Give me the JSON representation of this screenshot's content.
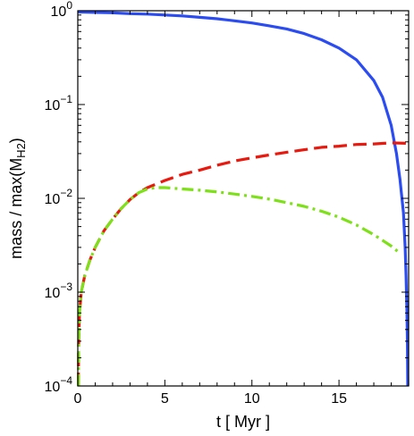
{
  "chart_data": {
    "type": "line",
    "title": "",
    "xlabel": "t [ Myr ]",
    "ylabel_parts": {
      "main": "mass / max(M",
      "sub": "H2",
      "close": ")"
    },
    "xlim": [
      0,
      19
    ],
    "ylim": [
      0.0001,
      1
    ],
    "yscale": "log",
    "grid": false,
    "legend": "none",
    "x_ticks": [
      {
        "value": 0,
        "label": "0"
      },
      {
        "value": 5,
        "label": "5"
      },
      {
        "value": 10,
        "label": "10"
      },
      {
        "value": 15,
        "label": "15"
      }
    ],
    "y_ticks": [
      {
        "value": 1,
        "base": "10",
        "exp": "0"
      },
      {
        "value": 0.1,
        "base": "10",
        "exp": "−1"
      },
      {
        "value": 0.01,
        "base": "10",
        "exp": "−2"
      },
      {
        "value": 0.001,
        "base": "10",
        "exp": "−3"
      },
      {
        "value": 0.0001,
        "base": "10",
        "exp": "−4"
      }
    ],
    "series": [
      {
        "color": "#2b4cf0",
        "style": "solid",
        "x": [
          0,
          1,
          2,
          3,
          4,
          5,
          6,
          7,
          8,
          9,
          10,
          11,
          12,
          13,
          14,
          15,
          16,
          17,
          17.5,
          18,
          18.3,
          18.5,
          18.7,
          18.8,
          18.85,
          18.9,
          18.93,
          18.95
        ],
        "y": [
          0.97,
          0.96,
          0.95,
          0.93,
          0.92,
          0.9,
          0.88,
          0.85,
          0.82,
          0.78,
          0.74,
          0.69,
          0.64,
          0.57,
          0.49,
          0.4,
          0.3,
          0.18,
          0.12,
          0.06,
          0.03,
          0.016,
          0.007,
          0.003,
          0.0015,
          0.0006,
          0.0003,
          0.0001
        ]
      },
      {
        "color": "#e8190e",
        "style": "dashed",
        "x": [
          0.03,
          0.05,
          0.1,
          0.2,
          0.4,
          0.7,
          1,
          1.5,
          2,
          2.5,
          3,
          3.5,
          4,
          5,
          6,
          7,
          8,
          9,
          10,
          11,
          12,
          13,
          14,
          15,
          16,
          17,
          18,
          19
        ],
        "y": [
          0.0001,
          0.0003,
          0.0006,
          0.001,
          0.0015,
          0.0022,
          0.003,
          0.0045,
          0.006,
          0.0078,
          0.0097,
          0.0115,
          0.013,
          0.0155,
          0.018,
          0.02,
          0.0225,
          0.025,
          0.027,
          0.029,
          0.031,
          0.033,
          0.035,
          0.036,
          0.0375,
          0.038,
          0.039,
          0.0385
        ]
      },
      {
        "color": "#7ee019",
        "style": "dashdot",
        "x": [
          0.03,
          0.05,
          0.1,
          0.2,
          0.4,
          0.7,
          1,
          1.5,
          2,
          2.5,
          3,
          3.5,
          4,
          4.5,
          5,
          6,
          7,
          8,
          9,
          10,
          11,
          12,
          13,
          14,
          15,
          16,
          17,
          18,
          18.5
        ],
        "y": [
          0.0001,
          0.0003,
          0.0006,
          0.001,
          0.0015,
          0.0022,
          0.003,
          0.0045,
          0.006,
          0.0078,
          0.0097,
          0.0115,
          0.0126,
          0.013,
          0.013,
          0.0126,
          0.0122,
          0.0117,
          0.0111,
          0.0105,
          0.0098,
          0.009,
          0.0082,
          0.0073,
          0.0063,
          0.0052,
          0.0041,
          0.0031,
          0.0026
        ]
      }
    ]
  }
}
